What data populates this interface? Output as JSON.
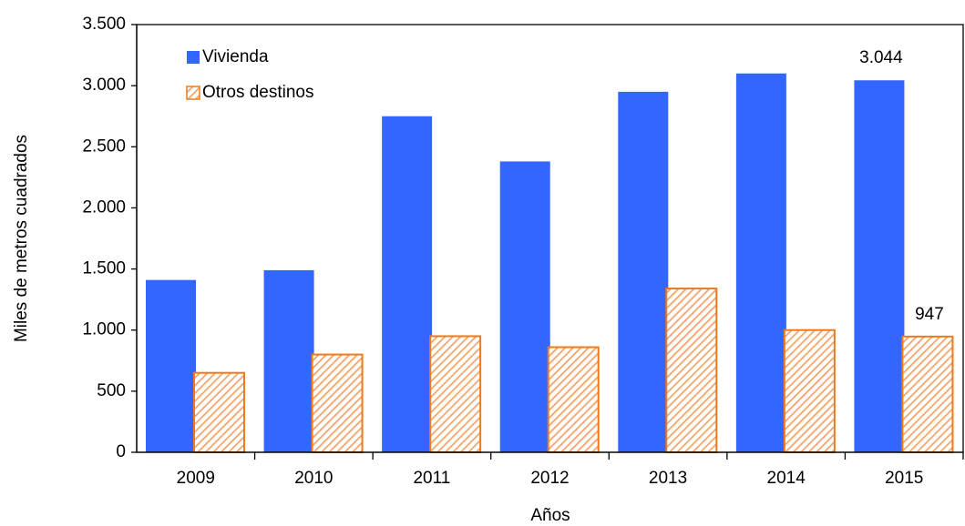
{
  "chart_data": {
    "type": "bar",
    "xlabel": "Años",
    "ylabel": "Miles de metros cuadrados",
    "categories": [
      "2009",
      "2010",
      "2011",
      "2012",
      "2013",
      "2014",
      "2015"
    ],
    "series": [
      {
        "name": "Vivienda",
        "color": "#3366ff",
        "values": [
          1410,
          1490,
          2750,
          2380,
          2950,
          3100,
          3044
        ],
        "value_labels": [
          null,
          null,
          null,
          null,
          null,
          null,
          "3.044"
        ]
      },
      {
        "name": "Otros destinos",
        "color": "#f07a1a",
        "hatch": true,
        "values": [
          650,
          800,
          950,
          860,
          1340,
          1000,
          947
        ],
        "value_labels": [
          null,
          null,
          null,
          null,
          null,
          null,
          "947"
        ]
      }
    ],
    "ylim": [
      0,
      3500
    ],
    "yticks": [
      {
        "value": 0,
        "label": "0"
      },
      {
        "value": 500,
        "label": "500"
      },
      {
        "value": 1000,
        "label": "1.000"
      },
      {
        "value": 1500,
        "label": "1.500"
      },
      {
        "value": 2000,
        "label": "2.000"
      },
      {
        "value": 2500,
        "label": "2.500"
      },
      {
        "value": 3000,
        "label": "3.000"
      },
      {
        "value": 3500,
        "label": "3.500"
      }
    ],
    "grid": false,
    "legend": "top-left"
  }
}
